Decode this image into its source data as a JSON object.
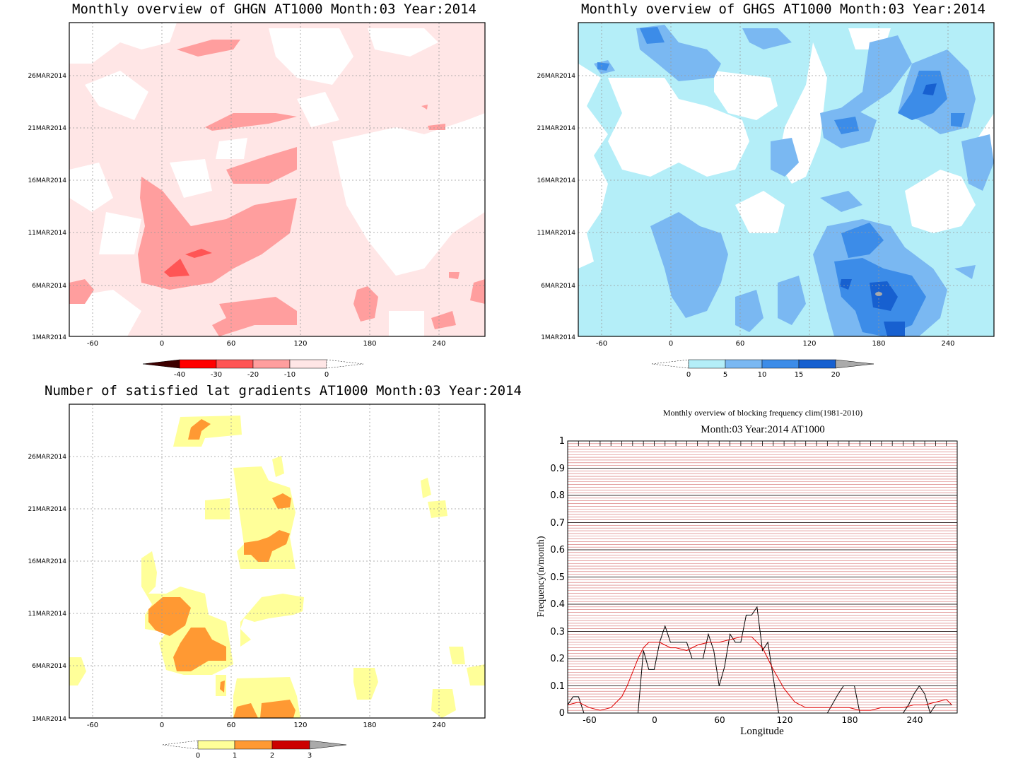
{
  "panels": {
    "ghgn": {
      "title": "Monthly overview of GHGN AT1000 Month:03 Year:2014",
      "y_ticks": [
        "1MAR2014",
        "6MAR2014",
        "11MAR2014",
        "16MAR2014",
        "21MAR2014",
        "26MAR2014"
      ],
      "x_ticks": [
        "-60",
        "0",
        "60",
        "120",
        "180",
        "240"
      ],
      "colorbar": {
        "labels": [
          "-40",
          "-30",
          "-20",
          "-10",
          "0"
        ],
        "colors": [
          "#3d0000",
          "#ff0000",
          "#ff5555",
          "#ff9e9e",
          "#ffe6e6"
        ]
      }
    },
    "ghgs": {
      "title": "Monthly overview of GHGS AT1000 Month:03 Year:2014",
      "y_ticks": [
        "1MAR2014",
        "6MAR2014",
        "11MAR2014",
        "16MAR2014",
        "21MAR2014",
        "26MAR2014"
      ],
      "x_ticks": [
        "-60",
        "0",
        "60",
        "120",
        "180",
        "240"
      ],
      "colorbar": {
        "labels": [
          "0",
          "5",
          "10",
          "15",
          "20"
        ],
        "colors": [
          "#b4eef8",
          "#7ab8f2",
          "#3c8ce8",
          "#1760d0",
          "#aaaaaa"
        ]
      }
    },
    "nlat": {
      "title": "Number of satisfied lat gradients AT1000 Month:03 Year:2014",
      "y_ticks": [
        "1MAR2014",
        "6MAR2014",
        "11MAR2014",
        "16MAR2014",
        "21MAR2014",
        "26MAR2014"
      ],
      "x_ticks": [
        "-60",
        "0",
        "60",
        "120",
        "180",
        "240"
      ],
      "colorbar": {
        "labels": [
          "0",
          "1",
          "2",
          "3"
        ],
        "colors": [
          "#ffff99",
          "#ff9933",
          "#cc0000",
          "#aaaaaa"
        ]
      }
    },
    "freq": {
      "title": "Monthly overview of blocking frequency clim(1981-2010)",
      "subtitle": "Month:03 Year:2014  AT1000",
      "ylabel": "Frequency(n/month)",
      "xlabel": "Longitude",
      "x_ticks": [
        "-60",
        "0",
        "60",
        "120",
        "180",
        "240"
      ],
      "y_ticks": [
        "0",
        "0.1",
        "0.2",
        "0.3",
        "0.4",
        "0.5",
        "0.6",
        "0.7",
        "0.8",
        "0.9",
        "1"
      ]
    }
  },
  "chart_data": [
    {
      "type": "heatmap",
      "title": "Monthly overview of GHGN AT1000 Month:03 Year:2014",
      "x_range": [
        -80,
        280
      ],
      "y_range": [
        "1MAR2014",
        "31MAR2014"
      ],
      "levels": [
        -40,
        -30,
        -20,
        -10,
        0
      ]
    },
    {
      "type": "heatmap",
      "title": "Monthly overview of GHGS AT1000 Month:03 Year:2014",
      "x_range": [
        -80,
        280
      ],
      "y_range": [
        "1MAR2014",
        "31MAR2014"
      ],
      "levels": [
        0,
        5,
        10,
        15,
        20
      ]
    },
    {
      "type": "heatmap",
      "title": "Number of satisfied lat gradients AT1000 Month:03 Year:2014",
      "x_range": [
        -80,
        280
      ],
      "y_range": [
        "1MAR2014",
        "31MAR2014"
      ],
      "levels": [
        0,
        1,
        2,
        3
      ]
    },
    {
      "type": "line",
      "title": "Monthly overview of blocking frequency clim(1981-2010)",
      "subtitle": "Month:03 Year:2014  AT1000",
      "xlabel": "Longitude",
      "ylabel": "Frequency(n/month)",
      "xlim": [
        -80,
        280
      ],
      "ylim": [
        0,
        1
      ],
      "series": [
        {
          "color": "#000000",
          "x": [
            -80,
            -75,
            -70,
            -65,
            -60,
            -40,
            -20,
            -15,
            -10,
            -5,
            0,
            5,
            10,
            15,
            20,
            25,
            30,
            35,
            40,
            45,
            50,
            55,
            60,
            65,
            70,
            75,
            80,
            85,
            90,
            95,
            100,
            105,
            110,
            115,
            120,
            160,
            170,
            175,
            180,
            185,
            190,
            230,
            235,
            240,
            245,
            250,
            255,
            260,
            275
          ],
          "y": [
            0.03,
            0.06,
            0.06,
            0.0,
            0.0,
            0.0,
            0.0,
            0.0,
            0.23,
            0.16,
            0.16,
            0.26,
            0.32,
            0.26,
            0.26,
            0.26,
            0.26,
            0.2,
            0.2,
            0.2,
            0.29,
            0.23,
            0.1,
            0.17,
            0.29,
            0.26,
            0.26,
            0.36,
            0.36,
            0.39,
            0.23,
            0.26,
            0.13,
            0.0,
            0.0,
            0.0,
            0.07,
            0.1,
            0.1,
            0.1,
            0.0,
            0.0,
            0.03,
            0.07,
            0.1,
            0.07,
            0.0,
            0.03,
            0.03
          ]
        },
        {
          "color": "#e00000",
          "x": [
            -80,
            -70,
            -60,
            -50,
            -40,
            -30,
            -25,
            -20,
            -15,
            -10,
            -5,
            0,
            5,
            10,
            15,
            20,
            30,
            40,
            50,
            60,
            70,
            80,
            90,
            100,
            110,
            120,
            130,
            140,
            150,
            160,
            170,
            180,
            190,
            200,
            210,
            220,
            230,
            240,
            250,
            260,
            270,
            275
          ],
          "y": [
            0.03,
            0.04,
            0.02,
            0.01,
            0.02,
            0.06,
            0.1,
            0.15,
            0.2,
            0.24,
            0.26,
            0.26,
            0.26,
            0.25,
            0.24,
            0.24,
            0.23,
            0.25,
            0.26,
            0.26,
            0.27,
            0.28,
            0.28,
            0.24,
            0.16,
            0.09,
            0.04,
            0.02,
            0.02,
            0.02,
            0.02,
            0.02,
            0.01,
            0.01,
            0.02,
            0.02,
            0.02,
            0.03,
            0.03,
            0.04,
            0.05,
            0.03
          ]
        }
      ]
    }
  ]
}
